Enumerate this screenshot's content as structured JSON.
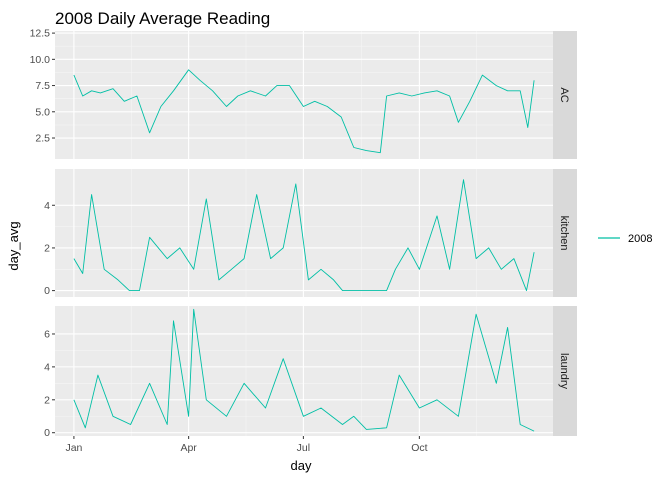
{
  "chart_data": {
    "type": "line",
    "title": "2008 Daily Average Reading",
    "xlabel": "day",
    "ylabel": "day_avg",
    "x_tick_labels": [
      "Jan",
      "Apr",
      "Jul",
      "Oct"
    ],
    "x_tick_dates": [
      "2008-01-01",
      "2008-04-01",
      "2008-07-01",
      "2008-10-01"
    ],
    "xlim": [
      "2007-12-17",
      "2009-01-15"
    ],
    "legend": {
      "position": "right",
      "entries": [
        "2008"
      ]
    },
    "series_color": "#00BFA5",
    "grid": true,
    "facets": [
      {
        "label": "AC",
        "ylim": [
          0.5,
          12.7
        ],
        "y_ticks": [
          2.5,
          5.0,
          7.5,
          10.0,
          12.5
        ],
        "y_tick_labels": [
          "2.5",
          "5.0",
          "7.5",
          "10.0",
          "12.5"
        ],
        "series": [
          {
            "name": "2008",
            "points": [
              [
                "2008-01-01",
                8.5
              ],
              [
                "2008-01-08",
                6.5
              ],
              [
                "2008-01-15",
                7.0
              ],
              [
                "2008-01-22",
                6.8
              ],
              [
                "2008-02-01",
                7.2
              ],
              [
                "2008-02-10",
                6.0
              ],
              [
                "2008-02-20",
                6.5
              ],
              [
                "2008-03-01",
                3.0
              ],
              [
                "2008-03-10",
                5.5
              ],
              [
                "2008-03-20",
                7.0
              ],
              [
                "2008-04-01",
                9.0
              ],
              [
                "2008-04-10",
                8.0
              ],
              [
                "2008-04-20",
                7.0
              ],
              [
                "2008-05-01",
                5.5
              ],
              [
                "2008-05-10",
                6.5
              ],
              [
                "2008-05-20",
                7.0
              ],
              [
                "2008-06-01",
                6.5
              ],
              [
                "2008-06-10",
                7.5
              ],
              [
                "2008-06-20",
                7.5
              ],
              [
                "2008-07-01",
                5.5
              ],
              [
                "2008-07-10",
                6.0
              ],
              [
                "2008-07-20",
                5.5
              ],
              [
                "2008-07-31",
                4.5
              ],
              [
                "2008-08-10",
                1.6
              ],
              [
                "2008-08-20",
                1.3
              ],
              [
                "2008-08-31",
                1.1
              ],
              [
                "2008-09-05",
                6.5
              ],
              [
                "2008-09-15",
                6.8
              ],
              [
                "2008-09-25",
                6.5
              ],
              [
                "2008-10-05",
                6.8
              ],
              [
                "2008-10-15",
                7.0
              ],
              [
                "2008-10-25",
                6.5
              ],
              [
                "2008-11-01",
                4.0
              ],
              [
                "2008-11-10",
                6.0
              ],
              [
                "2008-11-20",
                8.5
              ],
              [
                "2008-12-01",
                7.5
              ],
              [
                "2008-12-10",
                7.0
              ],
              [
                "2008-12-20",
                7.0
              ],
              [
                "2008-12-26",
                3.5
              ],
              [
                "2008-12-31",
                8.0
              ]
            ]
          }
        ]
      },
      {
        "label": "kitchen",
        "ylim": [
          -0.3,
          5.7
        ],
        "y_ticks": [
          0,
          2,
          4
        ],
        "y_tick_labels": [
          "0",
          "2",
          "4"
        ],
        "series": [
          {
            "name": "2008",
            "points": [
              [
                "2008-01-01",
                1.5
              ],
              [
                "2008-01-08",
                0.8
              ],
              [
                "2008-01-15",
                4.5
              ],
              [
                "2008-01-25",
                1.0
              ],
              [
                "2008-02-05",
                0.5
              ],
              [
                "2008-02-14",
                0.0
              ],
              [
                "2008-02-22",
                0.0
              ],
              [
                "2008-03-01",
                2.5
              ],
              [
                "2008-03-15",
                1.5
              ],
              [
                "2008-03-25",
                2.0
              ],
              [
                "2008-04-05",
                1.0
              ],
              [
                "2008-04-15",
                4.3
              ],
              [
                "2008-04-25",
                0.5
              ],
              [
                "2008-05-05",
                1.0
              ],
              [
                "2008-05-15",
                1.5
              ],
              [
                "2008-05-25",
                4.5
              ],
              [
                "2008-06-05",
                1.5
              ],
              [
                "2008-06-15",
                2.0
              ],
              [
                "2008-06-25",
                5.0
              ],
              [
                "2008-07-05",
                0.5
              ],
              [
                "2008-07-15",
                1.0
              ],
              [
                "2008-07-25",
                0.5
              ],
              [
                "2008-08-01",
                0.0
              ],
              [
                "2008-08-20",
                0.0
              ],
              [
                "2008-09-05",
                0.0
              ],
              [
                "2008-09-12",
                1.0
              ],
              [
                "2008-09-22",
                2.0
              ],
              [
                "2008-10-01",
                1.0
              ],
              [
                "2008-10-15",
                3.5
              ],
              [
                "2008-10-25",
                1.0
              ],
              [
                "2008-11-05",
                5.2
              ],
              [
                "2008-11-15",
                1.5
              ],
              [
                "2008-11-25",
                2.0
              ],
              [
                "2008-12-05",
                1.0
              ],
              [
                "2008-12-15",
                1.5
              ],
              [
                "2008-12-25",
                0.0
              ],
              [
                "2008-12-31",
                1.8
              ]
            ]
          }
        ]
      },
      {
        "label": "laundry",
        "ylim": [
          -0.2,
          7.7
        ],
        "y_ticks": [
          0,
          2,
          4,
          6
        ],
        "y_tick_labels": [
          "0",
          "2",
          "4",
          "6"
        ],
        "series": [
          {
            "name": "2008",
            "points": [
              [
                "2008-01-01",
                2.0
              ],
              [
                "2008-01-10",
                0.3
              ],
              [
                "2008-01-20",
                3.5
              ],
              [
                "2008-02-01",
                1.0
              ],
              [
                "2008-02-15",
                0.5
              ],
              [
                "2008-03-01",
                3.0
              ],
              [
                "2008-03-15",
                0.5
              ],
              [
                "2008-03-20",
                6.8
              ],
              [
                "2008-04-01",
                1.0
              ],
              [
                "2008-04-05",
                7.5
              ],
              [
                "2008-04-15",
                2.0
              ],
              [
                "2008-05-01",
                1.0
              ],
              [
                "2008-05-15",
                3.0
              ],
              [
                "2008-06-01",
                1.5
              ],
              [
                "2008-06-15",
                4.5
              ],
              [
                "2008-07-01",
                1.0
              ],
              [
                "2008-07-15",
                1.5
              ],
              [
                "2008-08-01",
                0.5
              ],
              [
                "2008-08-10",
                1.0
              ],
              [
                "2008-08-20",
                0.2
              ],
              [
                "2008-09-05",
                0.3
              ],
              [
                "2008-09-15",
                3.5
              ],
              [
                "2008-10-01",
                1.5
              ],
              [
                "2008-10-15",
                2.0
              ],
              [
                "2008-11-01",
                1.0
              ],
              [
                "2008-11-15",
                7.2
              ],
              [
                "2008-12-01",
                3.0
              ],
              [
                "2008-12-10",
                6.4
              ],
              [
                "2008-12-20",
                0.5
              ],
              [
                "2008-12-31",
                0.1
              ]
            ]
          }
        ]
      }
    ]
  }
}
